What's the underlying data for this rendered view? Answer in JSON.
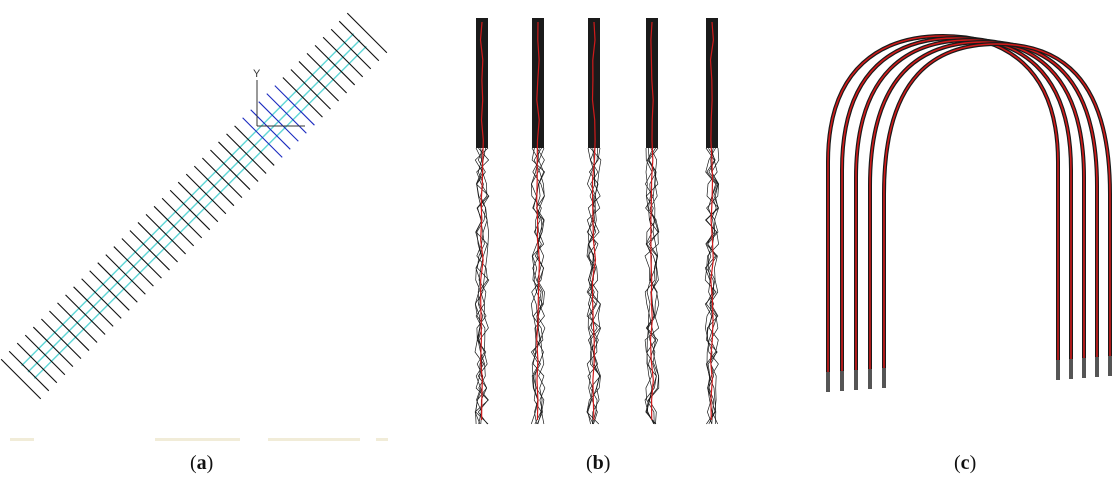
{
  "panels": [
    {
      "id": "a",
      "caption_open": "(",
      "caption_letter": "a",
      "caption_close": ")",
      "axis_label": "Y"
    },
    {
      "id": "b",
      "caption_open": "(",
      "caption_letter": "b",
      "caption_close": ")"
    },
    {
      "id": "c",
      "caption_open": "(",
      "caption_letter": "c",
      "caption_close": ")"
    }
  ],
  "colors": {
    "ticks": "#111111",
    "cyan": "#5fd6d6",
    "blue": "#1b2bbf",
    "red": "#d11a1a",
    "dark": "#1a1a1a",
    "band": "#f1ecd8"
  }
}
